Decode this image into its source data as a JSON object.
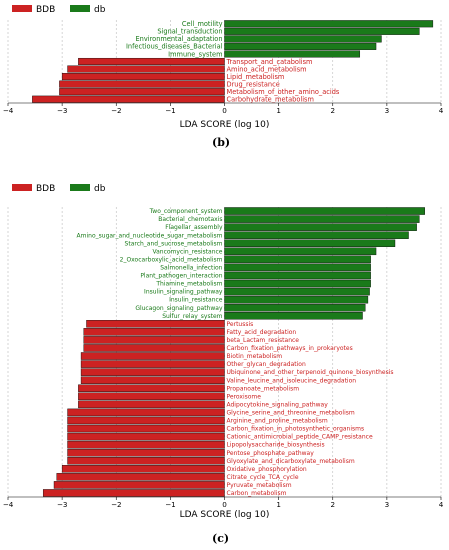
{
  "colors": {
    "bdb": "#cc2222",
    "db": "#1a7a1a"
  },
  "panel_labels": [
    "(b)",
    "(c)"
  ],
  "chart_data": [
    {
      "type": "bar",
      "orientation": "horizontal",
      "xlabel": "LDA SCORE (log 10)",
      "xlim": [
        -4,
        4
      ],
      "xticks": [
        -4,
        -3,
        -2,
        -1,
        0,
        1,
        2,
        3,
        4
      ],
      "grid": true,
      "legend": {
        "position": "top-left",
        "entries": [
          {
            "name": "BDB",
            "color": "#cc2222"
          },
          {
            "name": "db",
            "color": "#1a7a1a"
          }
        ]
      },
      "bars": [
        {
          "label": "Cell_motility",
          "value": 3.85,
          "group": "db"
        },
        {
          "label": "Signal_transduction",
          "value": 3.6,
          "group": "db"
        },
        {
          "label": "Environmental_adaptation",
          "value": 2.9,
          "group": "db"
        },
        {
          "label": "Infectious_diseases_Bacterial",
          "value": 2.8,
          "group": "db"
        },
        {
          "label": "Immune_system",
          "value": 2.5,
          "group": "db"
        },
        {
          "label": "Transport_and_catabolism",
          "value": -2.7,
          "group": "BDB"
        },
        {
          "label": "Amino_acid_metabolism",
          "value": -2.9,
          "group": "BDB"
        },
        {
          "label": "Lipid_metabolism",
          "value": -3.0,
          "group": "BDB"
        },
        {
          "label": "Drug_resistance",
          "value": -3.05,
          "group": "BDB"
        },
        {
          "label": "Metabolism_of_other_amino_acids",
          "value": -3.05,
          "group": "BDB"
        },
        {
          "label": "Carbohydrate_metabolism",
          "value": -3.55,
          "group": "BDB"
        }
      ]
    },
    {
      "type": "bar",
      "orientation": "horizontal",
      "xlabel": "LDA SCORE (log 10)",
      "xlim": [
        -4,
        4
      ],
      "xticks": [
        -4,
        -3,
        -2,
        -1,
        0,
        1,
        2,
        3,
        4
      ],
      "grid": true,
      "legend": {
        "position": "top-left",
        "entries": [
          {
            "name": "BDB",
            "color": "#cc2222"
          },
          {
            "name": "db",
            "color": "#1a7a1a"
          }
        ]
      },
      "bars": [
        {
          "label": "Two_component_system",
          "value": 3.7,
          "group": "db"
        },
        {
          "label": "Bacterial_chemotaxis",
          "value": 3.6,
          "group": "db"
        },
        {
          "label": "Flagellar_assembly",
          "value": 3.55,
          "group": "db"
        },
        {
          "label": "Amino_sugar_and_nucleotide_sugar_metabolism",
          "value": 3.4,
          "group": "db"
        },
        {
          "label": "Starch_and_sucrose_metabolism",
          "value": 3.15,
          "group": "db"
        },
        {
          "label": "Vancomycin_resistance",
          "value": 2.8,
          "group": "db"
        },
        {
          "label": "2_Oxocarboxylic_acid_metabolism",
          "value": 2.7,
          "group": "db"
        },
        {
          "label": "Salmonella_infection",
          "value": 2.7,
          "group": "db"
        },
        {
          "label": "Plant_pathogen_interaction",
          "value": 2.7,
          "group": "db"
        },
        {
          "label": "Thiamine_metabolism",
          "value": 2.7,
          "group": "db"
        },
        {
          "label": "Insulin_signaling_pathway",
          "value": 2.68,
          "group": "db"
        },
        {
          "label": "Insulin_resistance",
          "value": 2.65,
          "group": "db"
        },
        {
          "label": "Glucagon_signaling_pathway",
          "value": 2.6,
          "group": "db"
        },
        {
          "label": "Sulfur_relay_system",
          "value": 2.55,
          "group": "db"
        },
        {
          "label": "Pertussis",
          "value": -2.55,
          "group": "BDB"
        },
        {
          "label": "Fatty_acid_degradation",
          "value": -2.6,
          "group": "BDB"
        },
        {
          "label": "beta_Lactam_resistance",
          "value": -2.6,
          "group": "BDB"
        },
        {
          "label": "Carbon_fixation_pathways_in_prokaryotes",
          "value": -2.6,
          "group": "BDB"
        },
        {
          "label": "Biotin_metabolism",
          "value": -2.65,
          "group": "BDB"
        },
        {
          "label": "Other_glycan_degradation",
          "value": -2.65,
          "group": "BDB"
        },
        {
          "label": "Ubiquinone_and_other_terpenoid_quinone_biosynthesis",
          "value": -2.65,
          "group": "BDB"
        },
        {
          "label": "Valine_leucine_and_isoleucine_degradation",
          "value": -2.65,
          "group": "BDB"
        },
        {
          "label": "Propanoate_metabolism",
          "value": -2.7,
          "group": "BDB"
        },
        {
          "label": "Peroxisome",
          "value": -2.7,
          "group": "BDB"
        },
        {
          "label": "Adipocytokine_signaling_pathway",
          "value": -2.7,
          "group": "BDB"
        },
        {
          "label": "Glycine_serine_and_threonine_metabolism",
          "value": -2.9,
          "group": "BDB"
        },
        {
          "label": "Arginine_and_proline_metabolism",
          "value": -2.9,
          "group": "BDB"
        },
        {
          "label": "Carbon_fixation_in_photosynthetic_organisms",
          "value": -2.9,
          "group": "BDB"
        },
        {
          "label": "Cationic_antimicrobial_peptide_CAMP_resistance",
          "value": -2.9,
          "group": "BDB"
        },
        {
          "label": "Lipopolysaccharide_biosynthesis",
          "value": -2.9,
          "group": "BDB"
        },
        {
          "label": "Pentose_phosphate_pathway",
          "value": -2.9,
          "group": "BDB"
        },
        {
          "label": "Glyoxylate_and_dicarboxylate_metabolism",
          "value": -2.9,
          "group": "BDB"
        },
        {
          "label": "Oxidative_phosphorylation",
          "value": -3.0,
          "group": "BDB"
        },
        {
          "label": "Citrate_cycle_TCA_cycle",
          "value": -3.1,
          "group": "BDB"
        },
        {
          "label": "Pyruvate_metabolism",
          "value": -3.15,
          "group": "BDB"
        },
        {
          "label": "Carbon_metabolism",
          "value": -3.35,
          "group": "BDB"
        }
      ]
    }
  ]
}
